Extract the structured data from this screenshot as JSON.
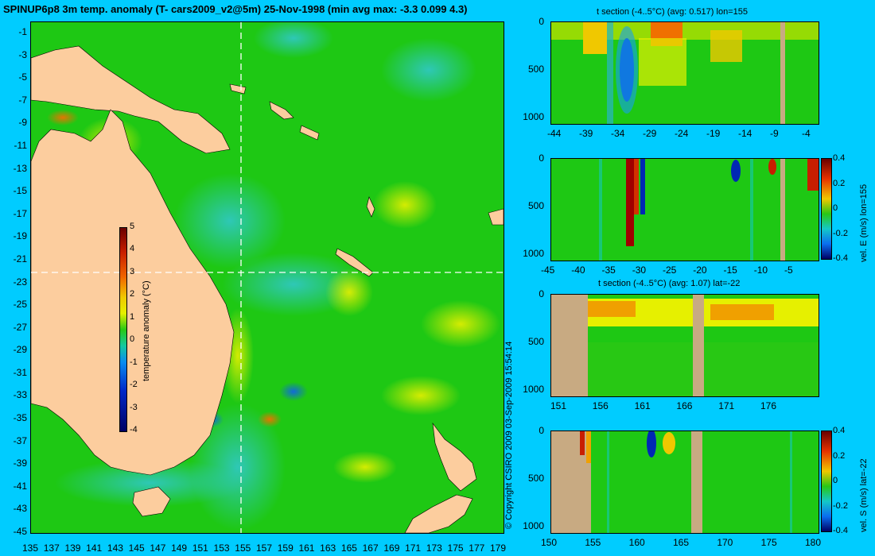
{
  "title": "SPINUP6p8 3m temp. anomaly (T- cars2009_v2@5m) 25-Nov-1998 (min avg max: -3.3 0.099 4.3)",
  "copyright": "© Copyright CSIRO 2009   03-Sep-2009 15:54:14",
  "map": {
    "lat_ticks": [
      "-1",
      "-3",
      "-5",
      "-7",
      "-9",
      "-11",
      "-13",
      "-15",
      "-17",
      "-19",
      "-21",
      "-23",
      "-25",
      "-27",
      "-29",
      "-31",
      "-33",
      "-35",
      "-37",
      "-39",
      "-41",
      "-43",
      "-45"
    ],
    "lon_ticks": [
      "135",
      "137",
      "139",
      "141",
      "143",
      "145",
      "147",
      "149",
      "151",
      "153",
      "155",
      "157",
      "159",
      "161",
      "163",
      "165",
      "167",
      "169",
      "171",
      "173",
      "175",
      "177",
      "179"
    ],
    "colorbar": {
      "label": "temperature anomaly (°C)",
      "ticks": [
        "5",
        "4",
        "3",
        "2",
        "1",
        "0",
        "-1",
        "-2",
        "-3",
        "-4"
      ]
    },
    "crosshair": {
      "lon": 155,
      "lat": -22
    }
  },
  "panels": [
    {
      "title": "t section (-4..5°C) (avg: 0.517) lon=155",
      "y_ticks": [
        "0",
        "500",
        "1000"
      ],
      "x_ticks": [
        "-44",
        "-39",
        "-34",
        "-29",
        "-24",
        "-19",
        "-14",
        "-9",
        "-4"
      ],
      "colorbar": null
    },
    {
      "title": "",
      "y_ticks": [
        "0",
        "500",
        "1000"
      ],
      "x_ticks": [
        "-45",
        "-40",
        "-35",
        "-30",
        "-25",
        "-20",
        "-15",
        "-10",
        "-5"
      ],
      "colorbar": {
        "label": "vel. E (m/s) lon=155",
        "ticks": [
          "0.4",
          "0.2",
          "0",
          "-0.2",
          "-0.4"
        ]
      }
    },
    {
      "title": "t section (-4..5°C) (avg: 1.07) lat=-22",
      "y_ticks": [
        "0",
        "500",
        "1000"
      ],
      "x_ticks": [
        "151",
        "156",
        "161",
        "166",
        "171",
        "176"
      ],
      "colorbar": null
    },
    {
      "title": "",
      "y_ticks": [
        "0",
        "500",
        "1000"
      ],
      "x_ticks": [
        "150",
        "155",
        "160",
        "165",
        "170",
        "175",
        "180"
      ],
      "colorbar": {
        "label": "vel. S (m/s) lat=-22",
        "ticks": [
          "0.4",
          "0.2",
          "0",
          "-0.2",
          "-0.4"
        ]
      }
    }
  ]
}
